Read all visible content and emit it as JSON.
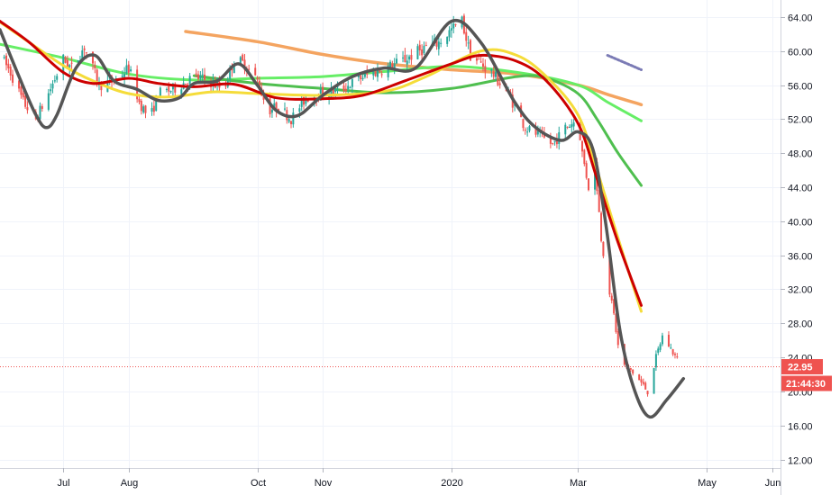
{
  "chart_data": {
    "type": "candlestick",
    "title": "",
    "xlabel": "",
    "ylabel": "",
    "ylim": [
      11,
      66
    ],
    "y_ticks": [
      "12.00",
      "16.00",
      "20.00",
      "24.00",
      "28.00",
      "32.00",
      "36.00",
      "40.00",
      "44.00",
      "48.00",
      "52.00",
      "56.00",
      "60.00",
      "64.00"
    ],
    "x_ticks": [
      {
        "label": "Jul",
        "date": "2019-07-01"
      },
      {
        "label": "Aug",
        "date": "2019-08-01"
      },
      {
        "label": "Oct",
        "date": "2019-10-01"
      },
      {
        "label": "Nov",
        "date": "2019-11-01"
      },
      {
        "label": "2020",
        "date": "2020-01-01"
      },
      {
        "label": "Mar",
        "date": "2020-03-01"
      },
      {
        "label": "May",
        "date": "2020-05-01"
      },
      {
        "label": "Jun",
        "date": "2020-06-01"
      }
    ],
    "x_range": [
      "2019-06-01",
      "2020-06-05"
    ],
    "grid": true,
    "colors": {
      "up": "#26a69a",
      "down": "#ef5350",
      "ma_gray": "#555555",
      "ma_red": "#cc0000",
      "ma_yellow": "#f5dc3a",
      "ma_green_light": "#66ee66",
      "ma_green": "#4fbf4f",
      "ma_green_dark": "#6db86d",
      "ma_orange": "#f4a460",
      "ma_purple": "#7b7bb5",
      "price_line": "#ef5350"
    },
    "last_price": {
      "value": 22.95,
      "label": "22.95",
      "countdown": "21:44:30"
    },
    "series": [
      {
        "key": "ma_orange",
        "points": [
          [
            "2019-08-28",
            62.3
          ],
          [
            "2019-10-01",
            61.1
          ],
          [
            "2019-11-01",
            59.6
          ],
          [
            "2019-12-01",
            58.5
          ],
          [
            "2020-01-01",
            57.8
          ],
          [
            "2020-02-01",
            57.3
          ],
          [
            "2020-03-01",
            56.0
          ],
          [
            "2020-03-15",
            54.9
          ],
          [
            "2020-03-31",
            53.7
          ]
        ]
      },
      {
        "key": "ma_green_light",
        "points": [
          [
            "2019-06-01",
            60.8
          ],
          [
            "2019-07-01",
            59.2
          ],
          [
            "2019-08-01",
            57.3
          ],
          [
            "2019-09-01",
            56.6
          ],
          [
            "2019-10-01",
            56.8
          ],
          [
            "2019-11-01",
            57.0
          ],
          [
            "2019-12-01",
            57.6
          ],
          [
            "2020-01-01",
            58.2
          ],
          [
            "2020-02-01",
            57.5
          ],
          [
            "2020-03-01",
            56.0
          ],
          [
            "2020-03-15",
            54.0
          ],
          [
            "2020-03-31",
            51.8
          ]
        ]
      },
      {
        "key": "ma_green",
        "points": [
          [
            "2019-09-01",
            57.1
          ],
          [
            "2019-10-01",
            56.2
          ],
          [
            "2019-11-01",
            55.6
          ],
          [
            "2019-12-01",
            55.1
          ],
          [
            "2020-01-01",
            55.6
          ],
          [
            "2020-02-01",
            57.0
          ],
          [
            "2020-02-15",
            56.8
          ],
          [
            "2020-03-01",
            55.0
          ],
          [
            "2020-03-10",
            52.0
          ],
          [
            "2020-03-20",
            48.0
          ],
          [
            "2020-03-31",
            44.2
          ]
        ]
      },
      {
        "key": "ma_yellow",
        "points": [
          [
            "2019-06-01",
            63.4
          ],
          [
            "2019-06-15",
            61.0
          ],
          [
            "2019-07-01",
            58.3
          ],
          [
            "2019-07-15",
            56.5
          ],
          [
            "2019-08-01",
            55.0
          ],
          [
            "2019-08-20",
            54.6
          ],
          [
            "2019-09-10",
            55.2
          ],
          [
            "2019-10-01",
            55.0
          ],
          [
            "2019-11-01",
            54.8
          ],
          [
            "2019-12-01",
            55.3
          ],
          [
            "2019-12-20",
            57.0
          ],
          [
            "2020-01-15",
            60.0
          ],
          [
            "2020-02-01",
            59.5
          ],
          [
            "2020-02-15",
            57.0
          ],
          [
            "2020-03-01",
            52.5
          ],
          [
            "2020-03-10",
            46.0
          ],
          [
            "2020-03-20",
            38.0
          ],
          [
            "2020-03-31",
            29.4
          ]
        ]
      },
      {
        "key": "ma_red",
        "points": [
          [
            "2019-06-01",
            63.5
          ],
          [
            "2019-06-15",
            61.0
          ],
          [
            "2019-07-01",
            57.5
          ],
          [
            "2019-07-15",
            56.2
          ],
          [
            "2019-08-01",
            56.8
          ],
          [
            "2019-08-15",
            56.2
          ],
          [
            "2019-09-01",
            55.8
          ],
          [
            "2019-09-20",
            56.1
          ],
          [
            "2019-10-10",
            54.5
          ],
          [
            "2019-11-01",
            54.4
          ],
          [
            "2019-11-20",
            54.8
          ],
          [
            "2019-12-10",
            56.5
          ],
          [
            "2020-01-01",
            58.5
          ],
          [
            "2020-01-15",
            59.5
          ],
          [
            "2020-02-01",
            58.8
          ],
          [
            "2020-02-15",
            56.5
          ],
          [
            "2020-03-01",
            51.5
          ],
          [
            "2020-03-10",
            45.0
          ],
          [
            "2020-03-20",
            37.5
          ],
          [
            "2020-03-31",
            30.1
          ]
        ]
      },
      {
        "key": "ma_gray",
        "points": [
          [
            "2019-06-01",
            62.5
          ],
          [
            "2019-06-10",
            57.0
          ],
          [
            "2019-06-18",
            52.5
          ],
          [
            "2019-06-23",
            51.0
          ],
          [
            "2019-06-28",
            52.5
          ],
          [
            "2019-07-07",
            58.0
          ],
          [
            "2019-07-16",
            59.5
          ],
          [
            "2019-07-25",
            56.5
          ],
          [
            "2019-08-05",
            55.5
          ],
          [
            "2019-08-15",
            54.2
          ],
          [
            "2019-08-25",
            54.5
          ],
          [
            "2019-09-01",
            56.2
          ],
          [
            "2019-09-12",
            56.5
          ],
          [
            "2019-09-22",
            58.5
          ],
          [
            "2019-10-01",
            56.0
          ],
          [
            "2019-10-10",
            53.0
          ],
          [
            "2019-10-20",
            52.4
          ],
          [
            "2019-11-01",
            54.8
          ],
          [
            "2019-11-15",
            57.0
          ],
          [
            "2019-11-30",
            58.0
          ],
          [
            "2019-12-15",
            58.0
          ],
          [
            "2020-01-01",
            63.5
          ],
          [
            "2020-01-15",
            61.0
          ],
          [
            "2020-01-31",
            54.0
          ],
          [
            "2020-02-10",
            51.0
          ],
          [
            "2020-02-22",
            49.5
          ],
          [
            "2020-03-01",
            50.5
          ],
          [
            "2020-03-08",
            48.5
          ],
          [
            "2020-03-14",
            40.0
          ],
          [
            "2020-03-21",
            27.0
          ],
          [
            "2020-03-28",
            20.0
          ],
          [
            "2020-04-04",
            17.0
          ],
          [
            "2020-04-12",
            19.0
          ],
          [
            "2020-04-20",
            21.5
          ]
        ]
      },
      {
        "key": "ma_purple",
        "points": [
          [
            "2020-03-15",
            59.5
          ],
          [
            "2020-03-31",
            57.8
          ]
        ]
      }
    ],
    "candles": {
      "waypoints": [
        [
          "2019-06-01",
          59.5
        ],
        [
          "2019-06-06",
          57.5
        ],
        [
          "2019-06-12",
          54.0
        ],
        [
          "2019-06-18",
          52.0
        ],
        [
          "2019-06-24",
          55.0
        ],
        [
          "2019-07-01",
          59.0
        ],
        [
          "2019-07-05",
          58.0
        ],
        [
          "2019-07-11",
          60.5
        ],
        [
          "2019-07-18",
          56.0
        ],
        [
          "2019-07-25",
          56.5
        ],
        [
          "2019-08-01",
          58.0
        ],
        [
          "2019-08-06",
          54.0
        ],
        [
          "2019-08-11",
          52.0
        ],
        [
          "2019-08-15",
          55.0
        ],
        [
          "2019-08-22",
          55.5
        ],
        [
          "2019-09-01",
          57.0
        ],
        [
          "2019-09-08",
          56.5
        ],
        [
          "2019-09-15",
          55.5
        ],
        [
          "2019-09-20",
          59.0
        ],
        [
          "2019-09-25",
          58.5
        ],
        [
          "2019-10-01",
          56.5
        ],
        [
          "2019-10-06",
          53.0
        ],
        [
          "2019-10-11",
          53.5
        ],
        [
          "2019-10-17",
          52.0
        ],
        [
          "2019-10-24",
          54.5
        ],
        [
          "2019-11-01",
          55.0
        ],
        [
          "2019-11-10",
          55.5
        ],
        [
          "2019-11-20",
          57.0
        ],
        [
          "2019-12-01",
          58.0
        ],
        [
          "2019-12-10",
          59.0
        ],
        [
          "2019-12-20",
          60.5
        ],
        [
          "2019-12-26",
          61.0
        ],
        [
          "2020-01-01",
          62.5
        ],
        [
          "2020-01-06",
          63.5
        ],
        [
          "2020-01-10",
          59.5
        ],
        [
          "2020-01-20",
          57.5
        ],
        [
          "2020-01-28",
          55.0
        ],
        [
          "2020-02-05",
          51.0
        ],
        [
          "2020-02-12",
          50.0
        ],
        [
          "2020-02-18",
          49.0
        ],
        [
          "2020-02-24",
          51.0
        ],
        [
          "2020-03-01",
          52.0
        ],
        [
          "2020-03-03",
          48.0
        ],
        [
          "2020-03-06",
          44.0
        ],
        [
          "2020-03-09",
          47.0
        ],
        [
          "2020-03-12",
          38.0
        ],
        [
          "2020-03-15",
          33.0
        ],
        [
          "2020-03-18",
          29.0
        ],
        [
          "2020-03-21",
          23.5
        ],
        [
          "2020-03-26",
          22.5
        ],
        [
          "2020-03-31",
          21.0
        ],
        [
          "2020-04-03",
          20.0
        ],
        [
          "2020-04-07",
          24.0
        ],
        [
          "2020-04-10",
          26.5
        ],
        [
          "2020-04-14",
          25.0
        ],
        [
          "2020-04-19",
          22.95
        ]
      ]
    }
  }
}
